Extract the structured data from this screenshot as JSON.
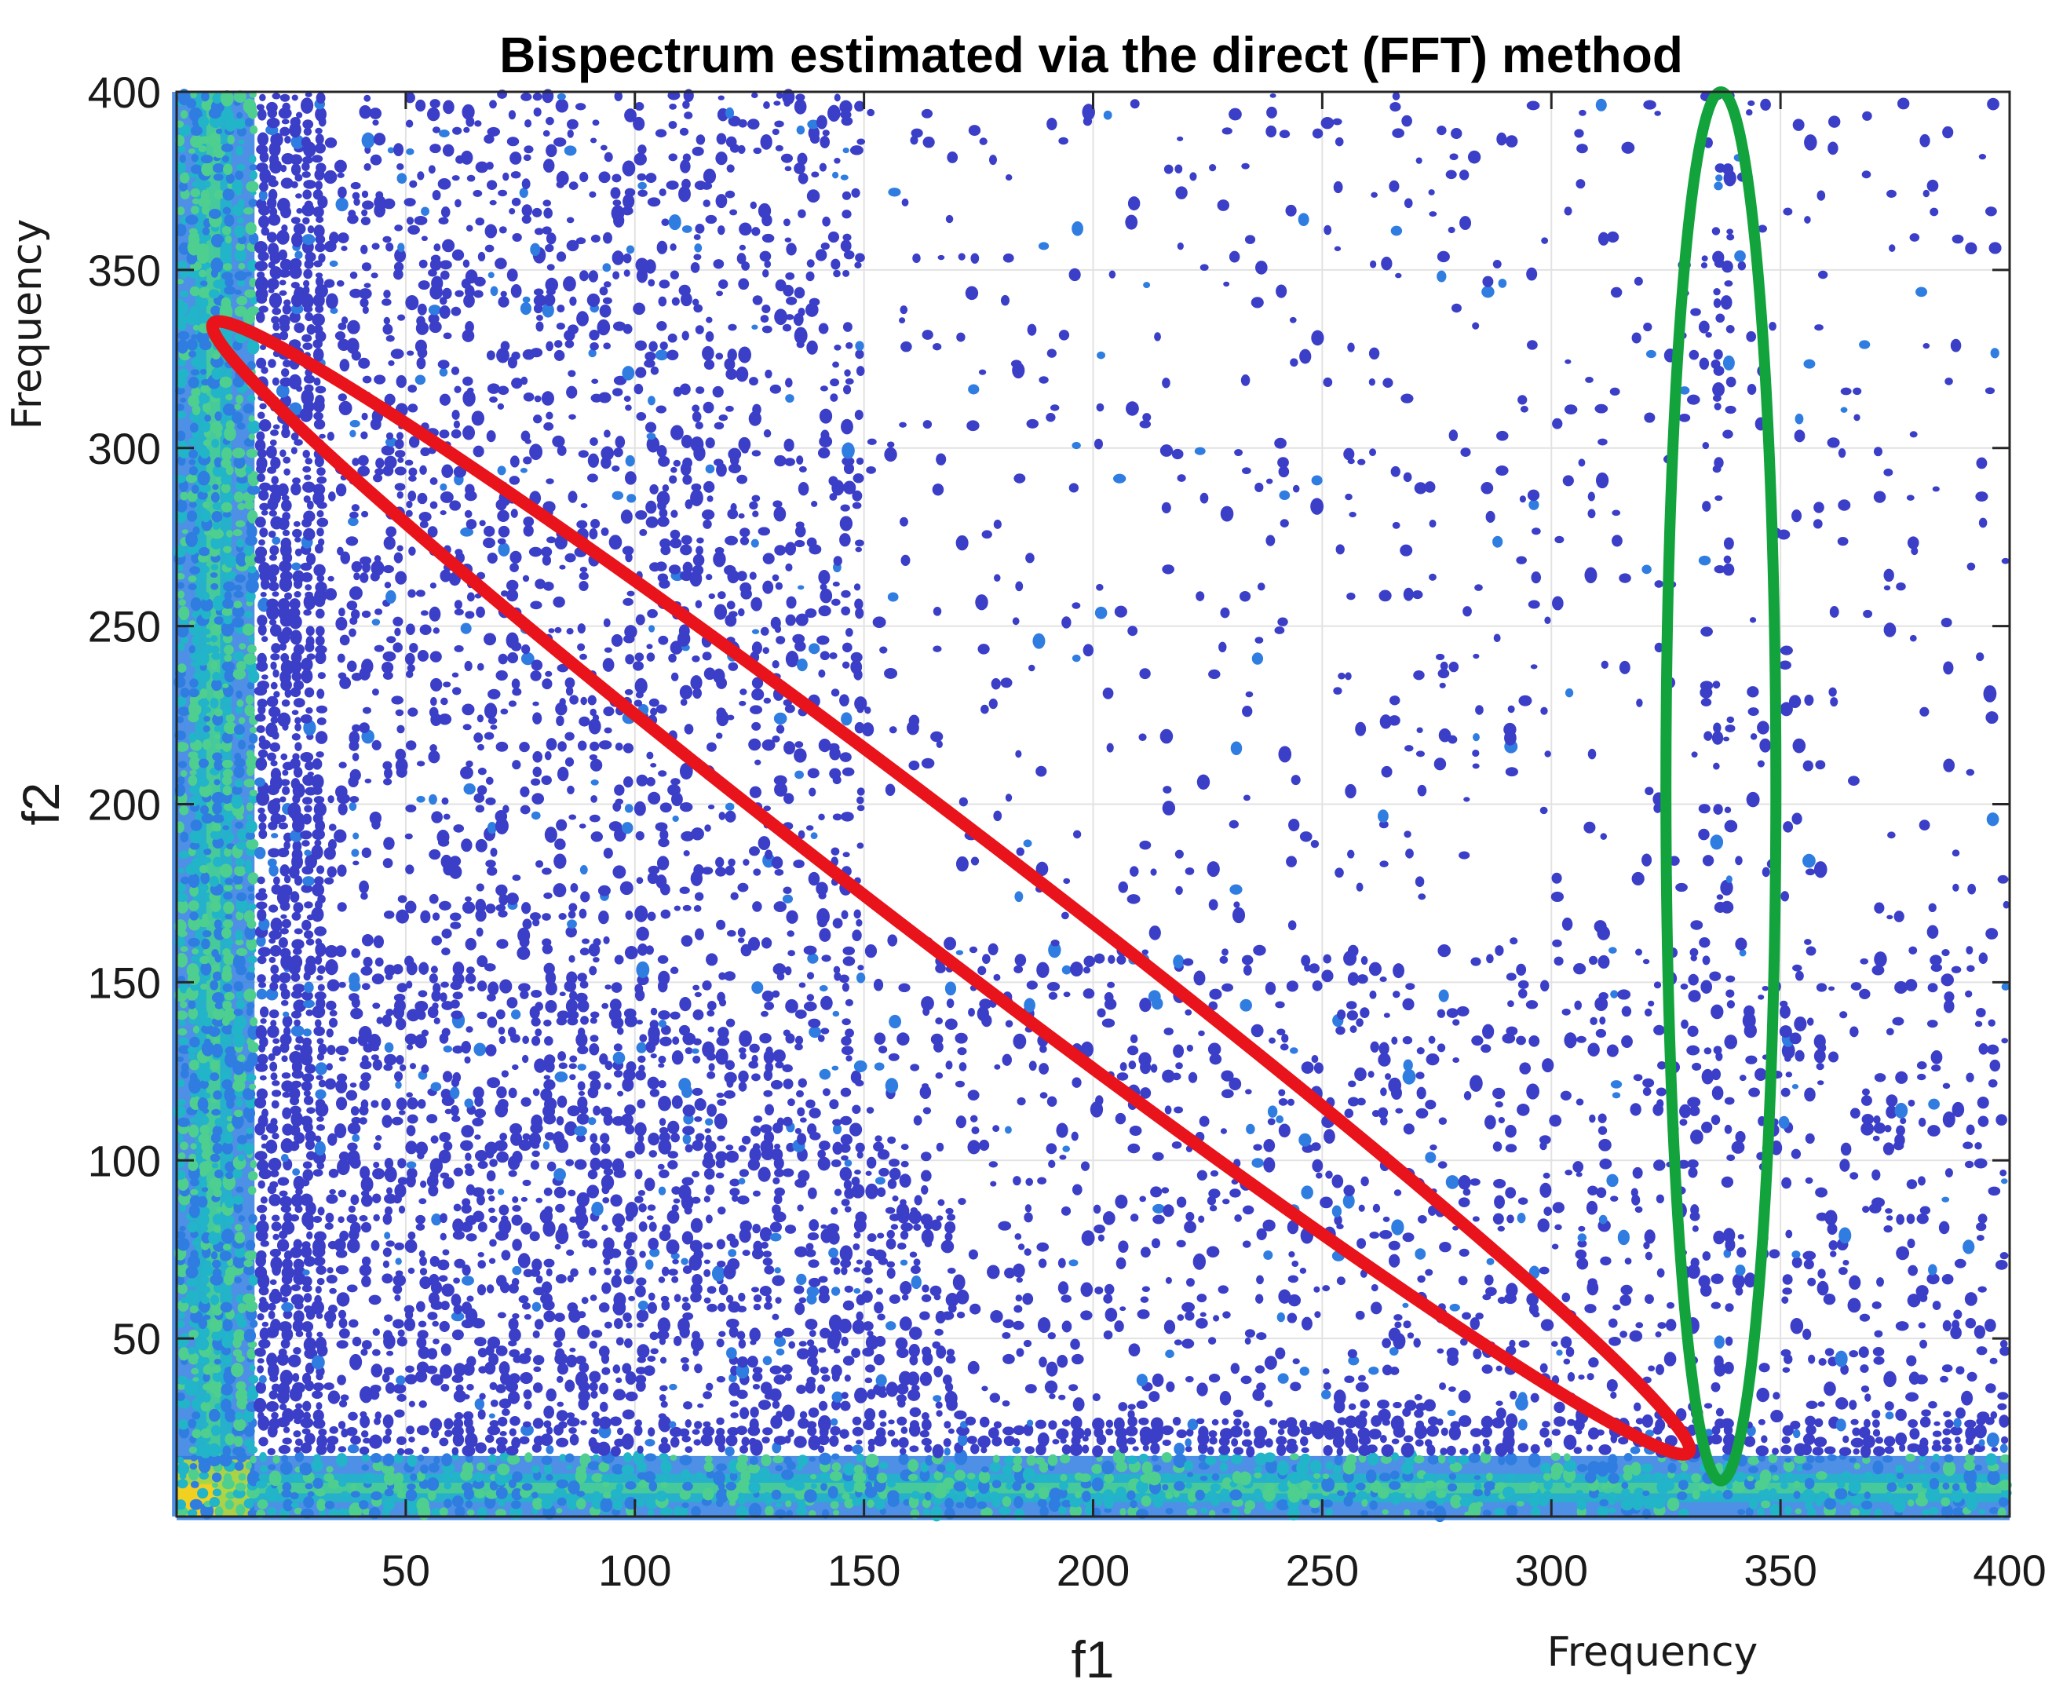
{
  "chart_data": {
    "type": "heatmap",
    "title": "Bispectrum estimated via the direct (FFT) method",
    "xlabel": "f1",
    "ylabel": "f2",
    "xlabel_secondary": "Frequency",
    "ylabel_secondary": "Frequency",
    "xlim": [
      0,
      400
    ],
    "ylim": [
      0,
      400
    ],
    "xticks": [
      50,
      100,
      150,
      200,
      250,
      300,
      350,
      400
    ],
    "yticks": [
      50,
      100,
      150,
      200,
      250,
      300,
      350,
      400
    ],
    "xtick_labels": [
      "50",
      "100",
      "150",
      "200",
      "250",
      "300",
      "350",
      "400"
    ],
    "ytick_labels": [
      "50",
      "100",
      "150",
      "200",
      "250",
      "300",
      "350",
      "400"
    ],
    "grid": true,
    "colormap": [
      "#3b3ec7",
      "#2f7de0",
      "#22b4c8",
      "#4fcf8f",
      "#b9d83a",
      "#f5d020"
    ],
    "strong_bands": [
      {
        "axis": "x",
        "center": 8,
        "description": "vertical band near f1 = 8"
      },
      {
        "axis": "y",
        "center": 8,
        "description": "horizontal band near f2 = 8"
      }
    ],
    "annotations": [
      {
        "shape": "ellipse",
        "color": "#e8131b",
        "from": [
          8,
          335
        ],
        "to": [
          330,
          18
        ]
      },
      {
        "shape": "ellipse",
        "color": "#13a33d",
        "center": [
          337,
          205
        ],
        "f1_range": [
          325,
          349
        ],
        "f2_range": [
          10,
          400
        ]
      }
    ]
  }
}
